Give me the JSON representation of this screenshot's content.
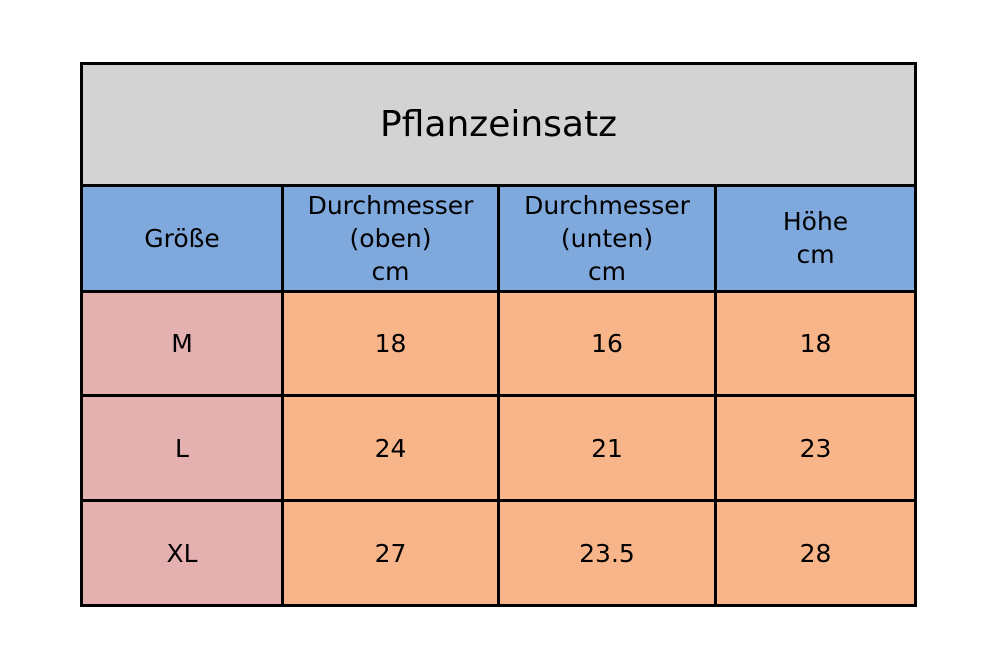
{
  "table": {
    "title": "Pflanzeinsatz",
    "columns": [
      {
        "lines": [
          "Größe"
        ]
      },
      {
        "lines": [
          "Durchmesser",
          "(oben)",
          "cm"
        ]
      },
      {
        "lines": [
          "Durchmesser",
          "(unten)",
          "cm"
        ]
      },
      {
        "lines": [
          "Höhe",
          "cm"
        ]
      }
    ],
    "rows": [
      {
        "size": "M",
        "values": [
          "18",
          "16",
          "18"
        ]
      },
      {
        "size": "L",
        "values": [
          "24",
          "21",
          "23"
        ]
      },
      {
        "size": "XL",
        "values": [
          "27",
          "23.5",
          "28"
        ]
      }
    ]
  },
  "colors": {
    "title_bg": "#d3d3d3",
    "header_bg": "#7fa9dc",
    "size_bg": "#e4b0b0",
    "value_bg": "#f9b58a",
    "border": "#000000"
  }
}
